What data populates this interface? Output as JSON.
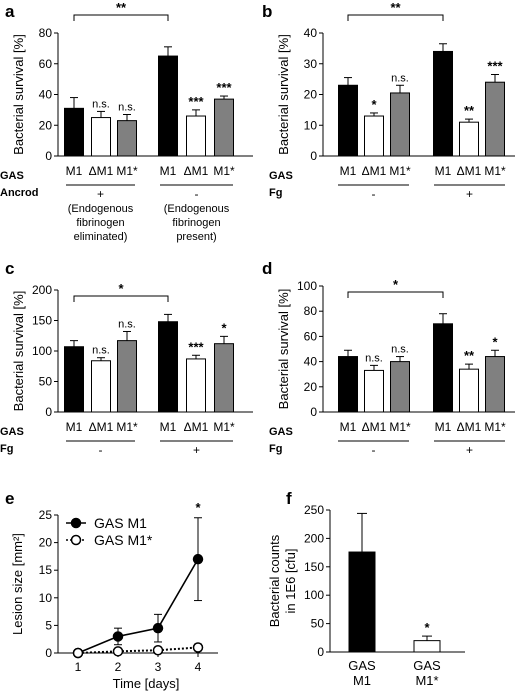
{
  "chart_data": [
    {
      "panel": "a",
      "type": "bar",
      "ylabel": "Bacterial survival [%]",
      "ylim": [
        0,
        80
      ],
      "yticks": [
        0,
        20,
        40,
        60,
        80
      ],
      "row_labels": [
        "GAS",
        "Ancrod"
      ],
      "categories": [
        "M1",
        "ΔM1",
        "M1*",
        "M1",
        "ΔM1",
        "M1*"
      ],
      "values": [
        31,
        25,
        23,
        65,
        26,
        37
      ],
      "errors": [
        7,
        4,
        4,
        6,
        4,
        2
      ],
      "bar_colors": [
        "#000000",
        "#ffffff",
        "#808080",
        "#000000",
        "#ffffff",
        "#808080"
      ],
      "significance": [
        "",
        "n.s.",
        "n.s.",
        "",
        "***",
        "***"
      ],
      "groups": [
        {
          "sign": "+",
          "note": [
            "(Endogenous",
            "fibrinogen",
            "eliminated)"
          ]
        },
        {
          "sign": "-",
          "note": [
            "(Endogenous",
            "fibrinogen",
            "present)"
          ]
        }
      ],
      "bracket": "**"
    },
    {
      "panel": "b",
      "type": "bar",
      "ylabel": "Bacterial survival [%]",
      "ylim": [
        0,
        40
      ],
      "yticks": [
        0,
        10,
        20,
        30,
        40
      ],
      "row_labels": [
        "GAS",
        "Fg"
      ],
      "categories": [
        "M1",
        "ΔM1",
        "M1*",
        "M1",
        "ΔM1",
        "M1*"
      ],
      "values": [
        23,
        13,
        20.5,
        34,
        11,
        24
      ],
      "errors": [
        2.5,
        1,
        2.5,
        2.5,
        1,
        2.5
      ],
      "bar_colors": [
        "#000000",
        "#ffffff",
        "#808080",
        "#000000",
        "#ffffff",
        "#808080"
      ],
      "significance": [
        "",
        "*",
        "n.s.",
        "",
        "**",
        "***"
      ],
      "groups": [
        {
          "sign": "-",
          "note": []
        },
        {
          "sign": "+",
          "note": []
        }
      ],
      "bracket": "**"
    },
    {
      "panel": "c",
      "type": "bar",
      "ylabel": "Bacterial survival [%]",
      "ylim": [
        0,
        200
      ],
      "yticks": [
        0,
        50,
        100,
        150,
        200
      ],
      "row_labels": [
        "GAS",
        "Fg"
      ],
      "categories": [
        "M1",
        "ΔM1",
        "M1*",
        "M1",
        "ΔM1",
        "M1*"
      ],
      "values": [
        107,
        84,
        117,
        148,
        87,
        112
      ],
      "errors": [
        10,
        5,
        15,
        12,
        6,
        12
      ],
      "bar_colors": [
        "#000000",
        "#ffffff",
        "#808080",
        "#000000",
        "#ffffff",
        "#808080"
      ],
      "significance": [
        "",
        "n.s.",
        "n.s.",
        "",
        "***",
        "*"
      ],
      "groups": [
        {
          "sign": "-",
          "note": []
        },
        {
          "sign": "+",
          "note": []
        }
      ],
      "bracket": "*"
    },
    {
      "panel": "d",
      "type": "bar",
      "ylabel": "Bacterial survival [%]",
      "ylim": [
        0,
        100
      ],
      "yticks": [
        0,
        20,
        40,
        60,
        80,
        100
      ],
      "row_labels": [
        "GAS",
        "Fg"
      ],
      "categories": [
        "M1",
        "ΔM1",
        "M1*",
        "M1",
        "ΔM1",
        "M1*"
      ],
      "values": [
        44,
        33,
        40,
        70,
        34,
        44
      ],
      "errors": [
        5,
        4,
        4,
        8,
        4,
        5
      ],
      "bar_colors": [
        "#000000",
        "#ffffff",
        "#808080",
        "#000000",
        "#ffffff",
        "#808080"
      ],
      "significance": [
        "",
        "n.s.",
        "n.s.",
        "",
        "**",
        "*"
      ],
      "groups": [
        {
          "sign": "-",
          "note": []
        },
        {
          "sign": "+",
          "note": []
        }
      ],
      "bracket": "*"
    },
    {
      "panel": "e",
      "type": "line",
      "xlabel": "Time [days]",
      "ylabel": "Lesion size [mm²]",
      "x": [
        1,
        2,
        3,
        4
      ],
      "xlim": [
        0.5,
        4.5
      ],
      "ylim": [
        0,
        25
      ],
      "yticks": [
        0,
        5,
        10,
        15,
        20,
        25
      ],
      "series": [
        {
          "name": "GAS M1",
          "values": [
            0,
            3,
            4.5,
            17
          ],
          "errors": [
            0,
            1.5,
            2.5,
            7.5
          ],
          "style": "solid",
          "marker": "filled"
        },
        {
          "name": "GAS M1*",
          "values": [
            0,
            0.3,
            0.5,
            1
          ],
          "errors": [
            0,
            0.3,
            0.3,
            0.6
          ],
          "style": "dotted",
          "marker": "open"
        }
      ],
      "annotation": "*",
      "legend": "top-left"
    },
    {
      "panel": "f",
      "type": "bar",
      "ylabel_lines": [
        "Bacterial counts",
        "in 1E6 [cfu]"
      ],
      "ylim": [
        0,
        250
      ],
      "yticks": [
        0,
        50,
        100,
        150,
        200,
        250
      ],
      "categories": [
        [
          "GAS",
          "M1"
        ],
        [
          "GAS",
          "M1*"
        ]
      ],
      "values": [
        176,
        20
      ],
      "errors": [
        68,
        8
      ],
      "bar_colors": [
        "#000000",
        "#ffffff"
      ],
      "significance": [
        "",
        "*"
      ]
    }
  ]
}
